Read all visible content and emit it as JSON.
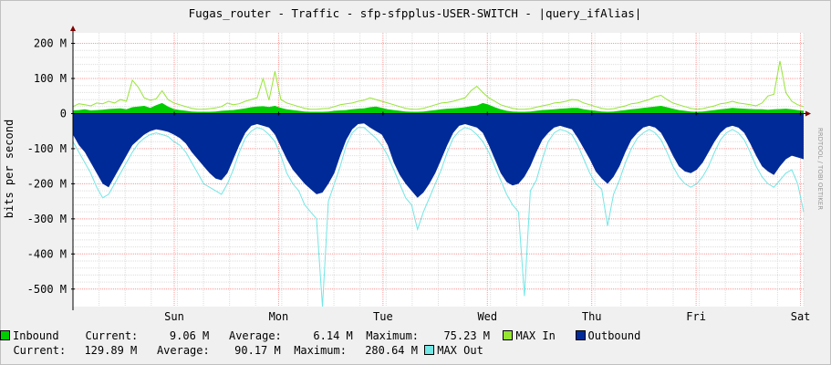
{
  "chart_data": {
    "type": "area",
    "title": "Fugas_router - Traffic - sfp-sfpplus-USER-SWITCH - |query_ifAlias|",
    "ylabel": "bits per second",
    "watermark": "RRDTOOL / TOBI OETIKER",
    "ylim": [
      -550000000,
      230000000
    ],
    "yticks": [
      200000000,
      100000000,
      0,
      -100000000,
      -200000000,
      -300000000,
      -400000000,
      -500000000
    ],
    "ytick_labels": [
      "200 M",
      "100 M",
      "0",
      "-100 M",
      "-200 M",
      "-300 M",
      "-400 M",
      "-500 M"
    ],
    "xticks": [
      "Sun",
      "Mon",
      "Tue",
      "Wed",
      "Thu",
      "Fri",
      "Sat"
    ],
    "x_span_days": 7,
    "x_start_offset_days": 0.97,
    "grid": true,
    "series": [
      {
        "name": "Inbound",
        "color": "#00cc00",
        "style": "area",
        "values": [
          9,
          10,
          12,
          9,
          10,
          11,
          13,
          14,
          15,
          12,
          18,
          20,
          22,
          16,
          24,
          30,
          20,
          13,
          10,
          8,
          6,
          5,
          5,
          5,
          6,
          8,
          9,
          10,
          12,
          15,
          18,
          20,
          21,
          19,
          22,
          16,
          12,
          10,
          8,
          6,
          5,
          5,
          5,
          6,
          8,
          9,
          10,
          12,
          14,
          15,
          18,
          20,
          16,
          12,
          10,
          8,
          6,
          5,
          5,
          6,
          8,
          10,
          12,
          14,
          15,
          16,
          18,
          21,
          23,
          30,
          25,
          18,
          12,
          8,
          6,
          5,
          5,
          6,
          8,
          10,
          11,
          12,
          14,
          15,
          16,
          16,
          12,
          10,
          8,
          6,
          5,
          6,
          8,
          10,
          12,
          14,
          16,
          18,
          20,
          22,
          18,
          14,
          10,
          8,
          6,
          5,
          6,
          8,
          10,
          12,
          14,
          16,
          15,
          14,
          13,
          12,
          12,
          11,
          12,
          13,
          14,
          12,
          10,
          8
        ]
      },
      {
        "name": "MAX In",
        "color": "#96e533",
        "style": "line",
        "values": [
          20,
          28,
          25,
          22,
          30,
          28,
          35,
          30,
          40,
          35,
          95,
          75,
          45,
          38,
          42,
          65,
          40,
          30,
          25,
          20,
          15,
          12,
          12,
          14,
          16,
          20,
          30,
          25,
          28,
          35,
          40,
          45,
          100,
          38,
          120,
          40,
          30,
          25,
          20,
          15,
          12,
          12,
          14,
          15,
          20,
          25,
          28,
          30,
          35,
          38,
          45,
          40,
          35,
          30,
          25,
          20,
          15,
          12,
          12,
          15,
          20,
          25,
          30,
          32,
          35,
          40,
          45,
          65,
          78,
          60,
          45,
          35,
          25,
          20,
          15,
          12,
          12,
          14,
          18,
          22,
          25,
          30,
          32,
          35,
          40,
          38,
          30,
          25,
          20,
          15,
          12,
          14,
          18,
          22,
          28,
          30,
          35,
          40,
          48,
          52,
          40,
          30,
          25,
          20,
          15,
          12,
          14,
          18,
          22,
          28,
          30,
          35,
          30,
          28,
          25,
          22,
          30,
          50,
          55,
          150,
          60,
          35,
          25,
          20
        ]
      },
      {
        "name": "Outbound",
        "color": "#002a97",
        "style": "area",
        "values": [
          -60,
          -90,
          -110,
          -140,
          -170,
          -200,
          -210,
          -180,
          -150,
          -120,
          -90,
          -75,
          -60,
          -50,
          -45,
          -48,
          -52,
          -60,
          -70,
          -85,
          -110,
          -130,
          -150,
          -170,
          -185,
          -190,
          -170,
          -130,
          -90,
          -55,
          -35,
          -30,
          -35,
          -40,
          -60,
          -95,
          -130,
          -160,
          -180,
          -200,
          -215,
          -230,
          -225,
          -200,
          -170,
          -120,
          -75,
          -45,
          -30,
          -28,
          -40,
          -50,
          -60,
          -90,
          -140,
          -175,
          -200,
          -220,
          -240,
          -225,
          -200,
          -170,
          -130,
          -90,
          -55,
          -35,
          -30,
          -35,
          -40,
          -55,
          -90,
          -130,
          -170,
          -195,
          -205,
          -200,
          -180,
          -150,
          -110,
          -75,
          -55,
          -40,
          -35,
          -40,
          -45,
          -70,
          -100,
          -130,
          -165,
          -185,
          -200,
          -180,
          -150,
          -110,
          -75,
          -55,
          -40,
          -35,
          -40,
          -55,
          -85,
          -120,
          -150,
          -165,
          -170,
          -160,
          -140,
          -110,
          -80,
          -55,
          -40,
          -35,
          -40,
          -55,
          -85,
          -120,
          -150,
          -165,
          -175,
          -150,
          -130,
          -120,
          -125,
          -130
        ]
      },
      {
        "name": "MAX Out",
        "color": "#73e6e6",
        "style": "line",
        "values": [
          -80,
          -110,
          -140,
          -170,
          -210,
          -240,
          -230,
          -200,
          -170,
          -140,
          -110,
          -85,
          -70,
          -60,
          -55,
          -60,
          -65,
          -80,
          -90,
          -110,
          -140,
          -170,
          -200,
          -210,
          -220,
          -230,
          -200,
          -160,
          -110,
          -70,
          -50,
          -40,
          -45,
          -60,
          -80,
          -120,
          -170,
          -200,
          -220,
          -260,
          -280,
          -300,
          -550,
          -250,
          -200,
          -150,
          -90,
          -55,
          -40,
          -40,
          -55,
          -70,
          -90,
          -120,
          -160,
          -200,
          -240,
          -260,
          -330,
          -280,
          -240,
          -200,
          -160,
          -110,
          -70,
          -50,
          -40,
          -45,
          -60,
          -80,
          -110,
          -150,
          -190,
          -230,
          -260,
          -280,
          -520,
          -220,
          -190,
          -130,
          -80,
          -55,
          -45,
          -50,
          -60,
          -90,
          -130,
          -170,
          -200,
          -215,
          -320,
          -230,
          -190,
          -140,
          -100,
          -70,
          -55,
          -45,
          -55,
          -75,
          -110,
          -150,
          -180,
          -200,
          -210,
          -200,
          -180,
          -150,
          -110,
          -75,
          -55,
          -45,
          -55,
          -75,
          -110,
          -150,
          -180,
          -200,
          -210,
          -190,
          -170,
          -160,
          -200,
          -280
        ]
      }
    ],
    "legend": [
      {
        "name": "Inbound",
        "color": "#00cc00",
        "current_label": "Current:",
        "current": "9.06 M",
        "average_label": "Average:",
        "average": "6.14 M",
        "maximum_label": "Maximum:",
        "maximum": "75.23 M"
      },
      {
        "name": "MAX In",
        "color": "#96e533"
      },
      {
        "name": "Outbound",
        "color": "#002a97",
        "current_label": "Current:",
        "current": "129.89 M",
        "average_label": "Average:",
        "average": "90.17 M",
        "maximum_label": "Maximum:",
        "maximum": "280.64 M"
      },
      {
        "name": "MAX Out",
        "color": "#73e6e6"
      }
    ],
    "colors": {
      "background": "#f0f0f0",
      "plot_bg": "#ffffff",
      "grid_major": "#ff9999",
      "grid_minor": "#dddddd",
      "axis": "#000000",
      "arrow": "#7f0000",
      "frame": "#c0c0c0"
    }
  }
}
